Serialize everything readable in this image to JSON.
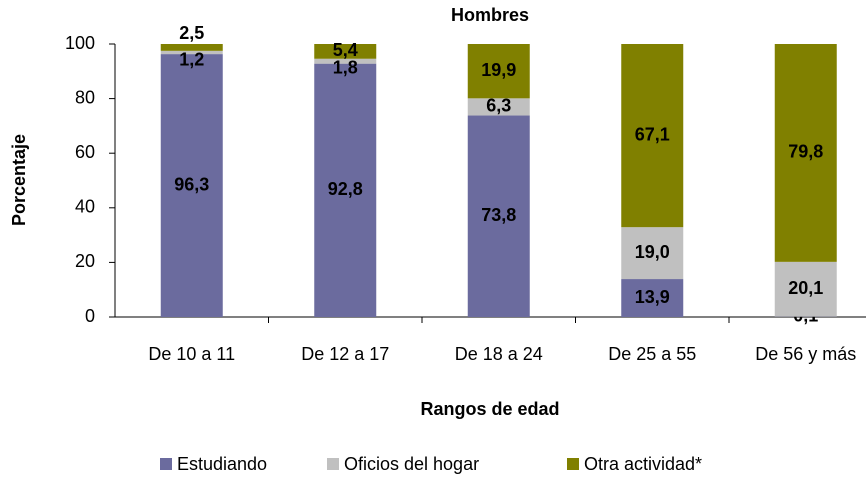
{
  "chart_data": {
    "type": "stacked_bar",
    "title": "Hombres",
    "x_label": "Rangos de edad",
    "y_label": "Porcentaje",
    "categories": [
      "De 10 a 11",
      "De 12 a 17",
      "De 18 a 24",
      "De 25 a 55",
      "De 56 y más"
    ],
    "series": [
      {
        "name": "Estudiando",
        "color": "#6b6b9e",
        "values": [
          96.3,
          92.8,
          73.8,
          13.9,
          0.1
        ],
        "value_labels": [
          "96,3",
          "92,8",
          "73,8",
          "13,9",
          "0,1"
        ]
      },
      {
        "name": "Oficios del hogar",
        "color": "#c0c0c0",
        "values": [
          1.2,
          1.8,
          6.3,
          19.0,
          20.1
        ],
        "value_labels": [
          "1,2",
          "1,8",
          "6,3",
          "19,0",
          "20,1"
        ]
      },
      {
        "name": "Otra actividad*",
        "color": "#808000",
        "values": [
          2.5,
          5.4,
          19.9,
          67.1,
          79.8
        ],
        "value_labels": [
          "2,5",
          "5,4",
          "19,9",
          "67,1",
          "79,8"
        ]
      }
    ],
    "ylim": [
      0,
      100
    ],
    "yticks": [
      0,
      20,
      40,
      60,
      80,
      100
    ],
    "legend": "bottom"
  }
}
